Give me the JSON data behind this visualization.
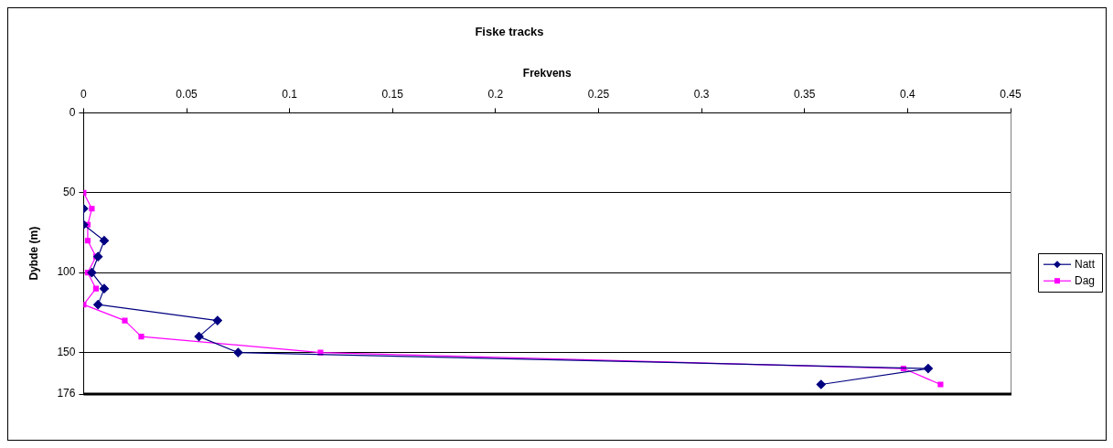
{
  "chart_data": {
    "type": "line",
    "title": "Fiske tracks",
    "xlabel": "Frekvens",
    "ylabel": "Dybde (m)",
    "xlim": [
      0,
      0.45
    ],
    "xticks": [
      0,
      0.05,
      0.1,
      0.15,
      0.2,
      0.25,
      0.3,
      0.35,
      0.4,
      0.45
    ],
    "ylim": [
      176,
      0
    ],
    "yticks": [
      0,
      50,
      100,
      150,
      176
    ],
    "series": [
      {
        "name": "Natt",
        "color": "#000080",
        "marker": "diamond",
        "x": [
          0,
          0,
          0.01,
          0.007,
          0.004,
          0.01,
          0.007,
          0.065,
          0.056,
          0.075,
          0.41,
          0.358
        ],
        "values": [
          60,
          70,
          80,
          90,
          100,
          110,
          120,
          130,
          140,
          150,
          160,
          170
        ]
      },
      {
        "name": "Dag",
        "color": "#ff00ff",
        "marker": "square",
        "x": [
          0,
          0.004,
          0.002,
          0.002,
          0.006,
          0.002,
          0.006,
          0,
          0.02,
          0.028,
          0.115,
          0.398,
          0.416
        ],
        "values": [
          50,
          60,
          70,
          80,
          90,
          100,
          110,
          120,
          130,
          140,
          150,
          160,
          170
        ]
      }
    ],
    "grid": "y",
    "legend": "right",
    "line_style": "solid"
  }
}
